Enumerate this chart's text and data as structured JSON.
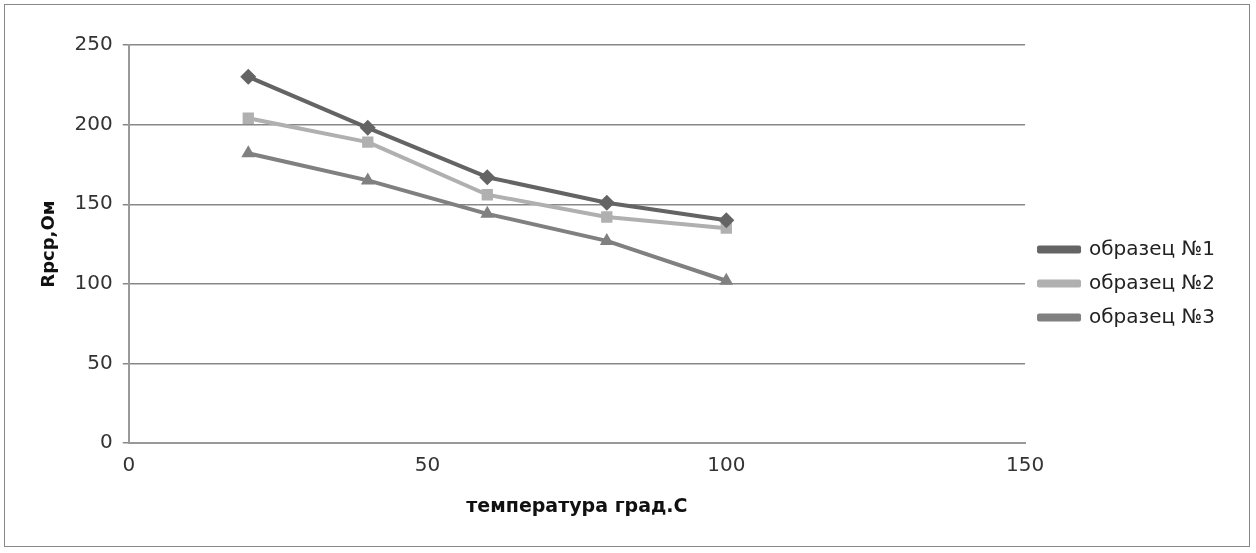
{
  "chart_data": {
    "type": "line",
    "xlabel": "температура град.С",
    "ylabel": "Rрср,Ом",
    "xlim": [
      0,
      150
    ],
    "xticks": [
      0,
      50,
      100,
      150
    ],
    "ylim": [
      0,
      250
    ],
    "yticks": [
      0,
      50,
      100,
      150,
      200,
      250
    ],
    "grid": "y",
    "legend": "right",
    "x": [
      20,
      40,
      60,
      80,
      100
    ],
    "series": [
      {
        "name": "образец №1",
        "color": "#646464",
        "marker": "diamond",
        "values": [
          230,
          198,
          167,
          151,
          140
        ]
      },
      {
        "name": "образец №2",
        "color": "#b0b0b0",
        "marker": "square",
        "values": [
          204,
          189,
          156,
          142,
          135
        ]
      },
      {
        "name": "образец №3",
        "color": "#808080",
        "marker": "triangle",
        "values": [
          182,
          165,
          144,
          127,
          102
        ]
      }
    ]
  }
}
